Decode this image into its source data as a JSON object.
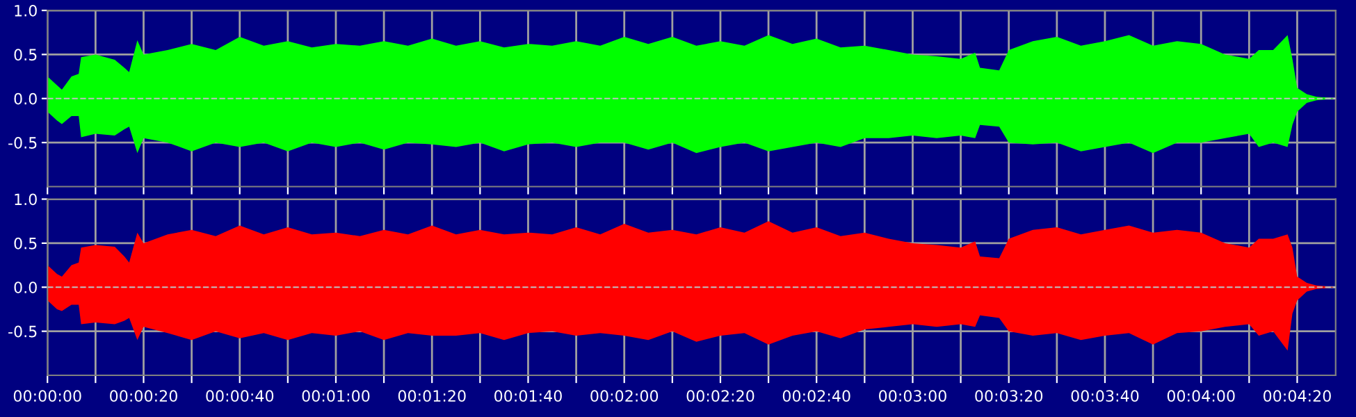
{
  "chart_data": [
    {
      "type": "area",
      "x": [
        0,
        2,
        3,
        5,
        6.5,
        7,
        10,
        14,
        16,
        17,
        18.7,
        20,
        25,
        30,
        35,
        40,
        45,
        50,
        55,
        60,
        65,
        70,
        75,
        80,
        85,
        90,
        95,
        100,
        105,
        110,
        115,
        120,
        125,
        130,
        135,
        140,
        145,
        150,
        155,
        160,
        165,
        170,
        175,
        180,
        185,
        190,
        193,
        194,
        198,
        200,
        205,
        210,
        215,
        220,
        225,
        230,
        235,
        240,
        245,
        250,
        252,
        255,
        258,
        259,
        260,
        262,
        264,
        268
      ],
      "series": [
        {
          "color": "#00ff00",
          "values": [
            0.25,
            0.15,
            0.1,
            0.25,
            0.28,
            0.47,
            0.5,
            0.44,
            0.35,
            0.3,
            0.66,
            0.5,
            0.55,
            0.62,
            0.55,
            0.7,
            0.6,
            0.65,
            0.58,
            0.62,
            0.6,
            0.65,
            0.6,
            0.68,
            0.6,
            0.65,
            0.58,
            0.62,
            0.6,
            0.65,
            0.6,
            0.7,
            0.62,
            0.7,
            0.6,
            0.65,
            0.6,
            0.72,
            0.62,
            0.68,
            0.58,
            0.6,
            0.55,
            0.5,
            0.48,
            0.45,
            0.52,
            0.35,
            0.32,
            0.55,
            0.65,
            0.7,
            0.6,
            0.65,
            0.72,
            0.6,
            0.65,
            0.62,
            0.5,
            0.45,
            0.55,
            0.55,
            0.72,
            0.45,
            0.12,
            0.05,
            0.02,
            0.0
          ]
        },
        {
          "color": "#00ff00",
          "values": [
            -0.15,
            -0.25,
            -0.29,
            -0.2,
            -0.2,
            -0.44,
            -0.4,
            -0.42,
            -0.35,
            -0.32,
            -0.62,
            -0.45,
            -0.5,
            -0.6,
            -0.5,
            -0.55,
            -0.5,
            -0.6,
            -0.5,
            -0.55,
            -0.5,
            -0.58,
            -0.5,
            -0.52,
            -0.55,
            -0.5,
            -0.6,
            -0.52,
            -0.5,
            -0.55,
            -0.5,
            -0.5,
            -0.58,
            -0.5,
            -0.62,
            -0.55,
            -0.5,
            -0.6,
            -0.55,
            -0.5,
            -0.55,
            -0.45,
            -0.45,
            -0.42,
            -0.45,
            -0.42,
            -0.45,
            -0.3,
            -0.32,
            -0.5,
            -0.52,
            -0.5,
            -0.6,
            -0.55,
            -0.5,
            -0.62,
            -0.5,
            -0.5,
            -0.45,
            -0.4,
            -0.55,
            -0.5,
            -0.55,
            -0.3,
            -0.15,
            -0.05,
            -0.02,
            0.0
          ]
        }
      ],
      "xlim": [
        0,
        268
      ],
      "ylim": [
        -1,
        1
      ],
      "xticks": [
        {
          "value": 0,
          "label": null
        },
        {
          "value": 10,
          "label": null
        },
        {
          "value": 20,
          "label": null
        },
        {
          "value": 30,
          "label": null
        },
        {
          "value": 40,
          "label": null
        },
        {
          "value": 50,
          "label": null
        },
        {
          "value": 60,
          "label": null
        },
        {
          "value": 70,
          "label": null
        },
        {
          "value": 80,
          "label": null
        },
        {
          "value": 90,
          "label": null
        },
        {
          "value": 100,
          "label": null
        },
        {
          "value": 110,
          "label": null
        },
        {
          "value": 120,
          "label": null
        },
        {
          "value": 130,
          "label": null
        },
        {
          "value": 140,
          "label": null
        },
        {
          "value": 150,
          "label": null
        },
        {
          "value": 160,
          "label": null
        },
        {
          "value": 170,
          "label": null
        },
        {
          "value": 180,
          "label": null
        },
        {
          "value": 190,
          "label": null
        },
        {
          "value": 200,
          "label": null
        },
        {
          "value": 210,
          "label": null
        },
        {
          "value": 220,
          "label": null
        },
        {
          "value": 230,
          "label": null
        },
        {
          "value": 240,
          "label": null
        },
        {
          "value": 250,
          "label": null
        },
        {
          "value": 260,
          "label": null
        }
      ],
      "yticks": [
        {
          "value": 1,
          "label": "1.0"
        },
        {
          "value": 0.5,
          "label": "0.5"
        },
        {
          "value": 0,
          "label": "0.0"
        },
        {
          "value": -0.5,
          "label": "-0.5"
        }
      ],
      "tick_labels": "y",
      "grid": true,
      "ref_lines": [
        {
          "axis": "y",
          "value": 0,
          "color": "#c0c0c0",
          "line_style": "dashed"
        }
      ]
    },
    {
      "type": "area",
      "x": [
        0,
        2,
        3,
        5,
        6.5,
        7,
        10,
        14,
        16,
        17,
        18.7,
        20,
        25,
        30,
        35,
        40,
        45,
        50,
        55,
        60,
        65,
        70,
        75,
        80,
        85,
        90,
        95,
        100,
        105,
        110,
        115,
        120,
        125,
        130,
        135,
        140,
        145,
        150,
        155,
        160,
        165,
        170,
        175,
        180,
        185,
        190,
        193,
        194,
        198,
        200,
        205,
        210,
        215,
        220,
        225,
        230,
        235,
        240,
        245,
        250,
        252,
        255,
        258,
        259,
        260,
        262,
        264,
        268
      ],
      "series": [
        {
          "color": "#ff0000",
          "values": [
            0.25,
            0.15,
            0.12,
            0.25,
            0.28,
            0.45,
            0.48,
            0.46,
            0.35,
            0.28,
            0.62,
            0.5,
            0.6,
            0.65,
            0.58,
            0.7,
            0.6,
            0.68,
            0.6,
            0.62,
            0.58,
            0.65,
            0.6,
            0.7,
            0.6,
            0.65,
            0.6,
            0.62,
            0.6,
            0.68,
            0.6,
            0.72,
            0.62,
            0.65,
            0.6,
            0.68,
            0.62,
            0.75,
            0.62,
            0.68,
            0.58,
            0.62,
            0.55,
            0.5,
            0.48,
            0.45,
            0.52,
            0.35,
            0.33,
            0.55,
            0.65,
            0.68,
            0.6,
            0.65,
            0.7,
            0.62,
            0.65,
            0.62,
            0.5,
            0.45,
            0.55,
            0.55,
            0.6,
            0.45,
            0.12,
            0.05,
            0.02,
            0.0
          ]
        },
        {
          "color": "#ff0000",
          "values": [
            -0.15,
            -0.25,
            -0.27,
            -0.2,
            -0.2,
            -0.42,
            -0.4,
            -0.42,
            -0.38,
            -0.35,
            -0.6,
            -0.45,
            -0.52,
            -0.6,
            -0.5,
            -0.58,
            -0.52,
            -0.6,
            -0.52,
            -0.55,
            -0.5,
            -0.6,
            -0.52,
            -0.55,
            -0.55,
            -0.52,
            -0.6,
            -0.52,
            -0.5,
            -0.55,
            -0.52,
            -0.55,
            -0.6,
            -0.5,
            -0.62,
            -0.55,
            -0.52,
            -0.65,
            -0.55,
            -0.5,
            -0.58,
            -0.48,
            -0.45,
            -0.42,
            -0.45,
            -0.42,
            -0.45,
            -0.32,
            -0.35,
            -0.5,
            -0.55,
            -0.52,
            -0.6,
            -0.55,
            -0.52,
            -0.65,
            -0.52,
            -0.5,
            -0.45,
            -0.42,
            -0.55,
            -0.5,
            -0.72,
            -0.3,
            -0.15,
            -0.05,
            -0.02,
            0.0
          ]
        }
      ],
      "xlim": [
        0,
        268
      ],
      "ylim": [
        -1,
        1
      ],
      "xticks": [
        {
          "value": 0,
          "label": "00:00:00"
        },
        {
          "value": 10,
          "label": null
        },
        {
          "value": 20,
          "label": "00:00:20"
        },
        {
          "value": 30,
          "label": null
        },
        {
          "value": 40,
          "label": "00:00:40"
        },
        {
          "value": 50,
          "label": null
        },
        {
          "value": 60,
          "label": "00:01:00"
        },
        {
          "value": 70,
          "label": null
        },
        {
          "value": 80,
          "label": "00:01:20"
        },
        {
          "value": 90,
          "label": null
        },
        {
          "value": 100,
          "label": "00:01:40"
        },
        {
          "value": 110,
          "label": null
        },
        {
          "value": 120,
          "label": "00:02:00"
        },
        {
          "value": 130,
          "label": null
        },
        {
          "value": 140,
          "label": "00:02:20"
        },
        {
          "value": 150,
          "label": null
        },
        {
          "value": 160,
          "label": "00:02:40"
        },
        {
          "value": 170,
          "label": null
        },
        {
          "value": 180,
          "label": "00:03:00"
        },
        {
          "value": 190,
          "label": null
        },
        {
          "value": 200,
          "label": "00:03:20"
        },
        {
          "value": 210,
          "label": null
        },
        {
          "value": 220,
          "label": "00:03:40"
        },
        {
          "value": 230,
          "label": null
        },
        {
          "value": 240,
          "label": "00:04:00"
        },
        {
          "value": 250,
          "label": null
        },
        {
          "value": 260,
          "label": "00:04:20"
        }
      ],
      "yticks": [
        {
          "value": 1,
          "label": "1.0"
        },
        {
          "value": 0.5,
          "label": "0.5"
        },
        {
          "value": 0,
          "label": "0.0"
        },
        {
          "value": -0.5,
          "label": "-0.5"
        }
      ],
      "grid": true,
      "ref_lines": [
        {
          "axis": "y",
          "value": 0,
          "color": "#c0c0c0",
          "line_style": "dashed"
        }
      ]
    }
  ]
}
